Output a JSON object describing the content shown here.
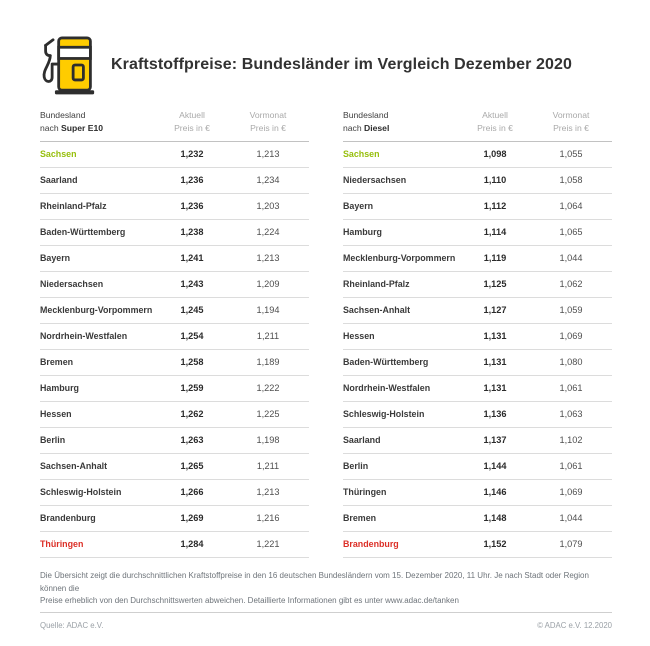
{
  "header": {
    "title": "Kraftstoffpreise: Bundesländer im Vergleich Dezember 2020",
    "icon": "fuel-pump-icon"
  },
  "columns": {
    "state": "Bundesland",
    "state_prefix": "nach ",
    "current": [
      "Aktuell",
      "Preis in €"
    ],
    "previous": [
      "Vormonat",
      "Preis in €"
    ]
  },
  "chart_data": [
    {
      "type": "table",
      "fuel": "Super E10",
      "rows": [
        {
          "state": "Sachsen",
          "current": "1,232",
          "previous": "1,213",
          "highlight": "cheapest"
        },
        {
          "state": "Saarland",
          "current": "1,236",
          "previous": "1,234"
        },
        {
          "state": "Rheinland-Pfalz",
          "current": "1,236",
          "previous": "1,203"
        },
        {
          "state": "Baden-Württemberg",
          "current": "1,238",
          "previous": "1,224"
        },
        {
          "state": "Bayern",
          "current": "1,241",
          "previous": "1,213"
        },
        {
          "state": "Niedersachsen",
          "current": "1,243",
          "previous": "1,209"
        },
        {
          "state": "Mecklenburg-Vorpommern",
          "current": "1,245",
          "previous": "1,194"
        },
        {
          "state": "Nordrhein-Westfalen",
          "current": "1,254",
          "previous": "1,211"
        },
        {
          "state": "Bremen",
          "current": "1,258",
          "previous": "1,189"
        },
        {
          "state": "Hamburg",
          "current": "1,259",
          "previous": "1,222"
        },
        {
          "state": "Hessen",
          "current": "1,262",
          "previous": "1,225"
        },
        {
          "state": "Berlin",
          "current": "1,263",
          "previous": "1,198"
        },
        {
          "state": "Sachsen-Anhalt",
          "current": "1,265",
          "previous": "1,211"
        },
        {
          "state": "Schleswig-Holstein",
          "current": "1,266",
          "previous": "1,213"
        },
        {
          "state": "Brandenburg",
          "current": "1,269",
          "previous": "1,216"
        },
        {
          "state": "Thüringen",
          "current": "1,284",
          "previous": "1,221",
          "highlight": "most_expensive"
        }
      ]
    },
    {
      "type": "table",
      "fuel": "Diesel",
      "rows": [
        {
          "state": "Sachsen",
          "current": "1,098",
          "previous": "1,055",
          "highlight": "cheapest"
        },
        {
          "state": "Niedersachsen",
          "current": "1,110",
          "previous": "1,058"
        },
        {
          "state": "Bayern",
          "current": "1,112",
          "previous": "1,064"
        },
        {
          "state": "Hamburg",
          "current": "1,114",
          "previous": "1,065"
        },
        {
          "state": "Mecklenburg-Vorpommern",
          "current": "1,119",
          "previous": "1,044"
        },
        {
          "state": "Rheinland-Pfalz",
          "current": "1,125",
          "previous": "1,062"
        },
        {
          "state": "Sachsen-Anhalt",
          "current": "1,127",
          "previous": "1,059"
        },
        {
          "state": "Hessen",
          "current": "1,131",
          "previous": "1,069"
        },
        {
          "state": "Baden-Württemberg",
          "current": "1,131",
          "previous": "1,080"
        },
        {
          "state": "Nordrhein-Westfalen",
          "current": "1,131",
          "previous": "1,061"
        },
        {
          "state": "Schleswig-Holstein",
          "current": "1,136",
          "previous": "1,063"
        },
        {
          "state": "Saarland",
          "current": "1,137",
          "previous": "1,102"
        },
        {
          "state": "Berlin",
          "current": "1,144",
          "previous": "1,061"
        },
        {
          "state": "Thüringen",
          "current": "1,146",
          "previous": "1,069"
        },
        {
          "state": "Bremen",
          "current": "1,148",
          "previous": "1,044"
        },
        {
          "state": "Brandenburg",
          "current": "1,152",
          "previous": "1,079",
          "highlight": "most_expensive"
        }
      ]
    }
  ],
  "footnote": {
    "lines": [
      "Die Übersicht zeigt die durchschnittlichen Kraftstoffpreise in den 16 deutschen Bundesländern vom 15. Dezember 2020, 11 Uhr. Je nach Stadt oder Region können die",
      "Preise erheblich von den Durchschnittswerten abweichen. Detaillierte Informationen gibt es unter www.adac.de/tanken"
    ]
  },
  "footer": {
    "source": "Quelle: ADAC e.V.",
    "copyright": "© ADAC e.V. 12.2020"
  },
  "colors": {
    "brand_yellow": "#FFCC00",
    "cheapest_green": "#97BF0D",
    "most_expensive_red": "#DC2F27"
  }
}
